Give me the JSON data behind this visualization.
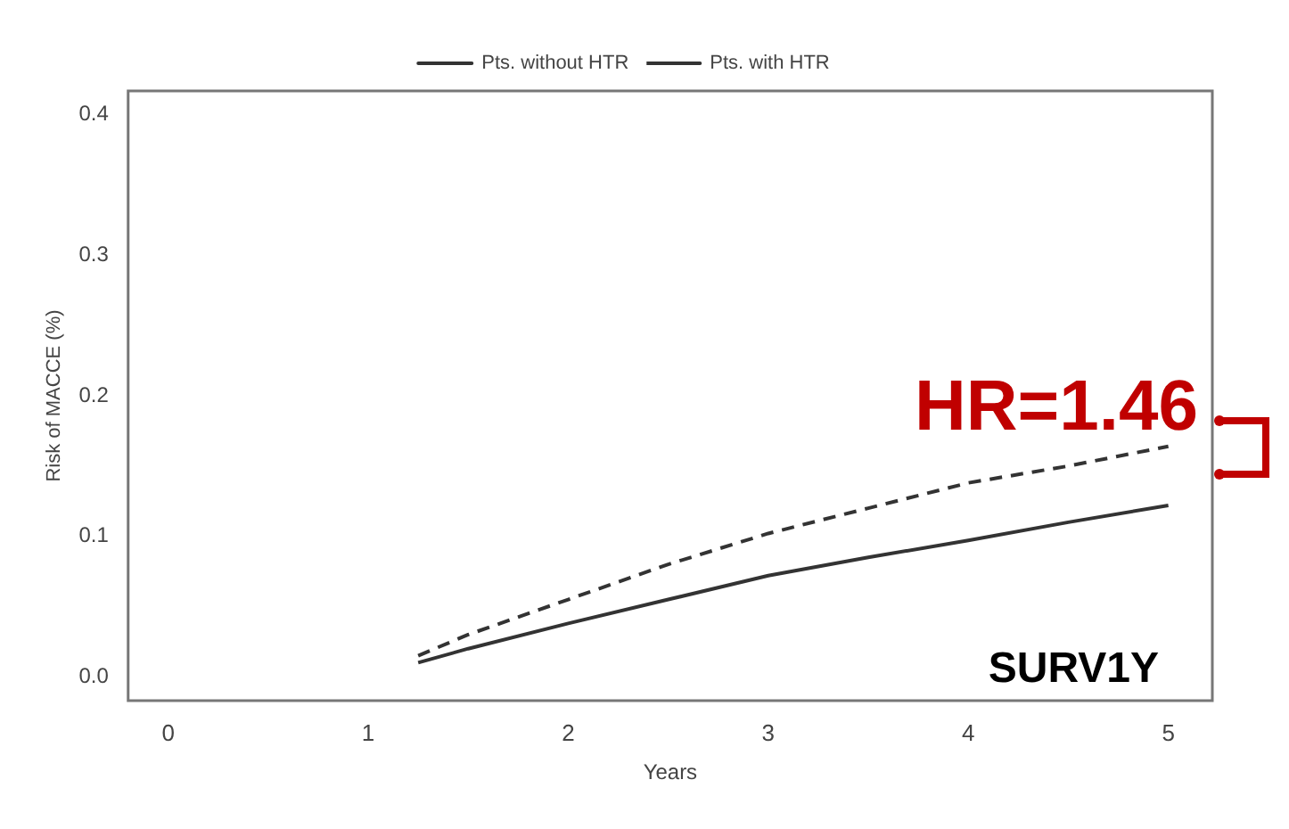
{
  "chart_data": {
    "type": "line",
    "xlabel": "Years",
    "ylabel": "Risk of MACCE (%)",
    "annotations": [
      "HR=1.46",
      "SURV1Y"
    ],
    "xlim": [
      -0.2,
      5.22
    ],
    "xticks": [
      0,
      1,
      2,
      3,
      4,
      5
    ],
    "ylim": [
      -0.017,
      0.417
    ],
    "yticks": [
      {
        "value": 0,
        "label": "0.0"
      },
      {
        "value": 0.1,
        "label": "0.1"
      },
      {
        "value": 0.2,
        "label": "0.2"
      },
      {
        "value": 0.3,
        "label": "0.3"
      },
      {
        "value": 0.4,
        "label": "0.4"
      }
    ],
    "grid": false,
    "legend": "top",
    "marker": "none",
    "series": [
      {
        "name": "Pts. without HTR",
        "color": "#333333",
        "line_style": "solid",
        "x": [
          1.25,
          1.5,
          2,
          2.5,
          3,
          3.5,
          4,
          4.5,
          5
        ],
        "values": [
          0.01,
          0.02,
          0.038,
          0.055,
          0.072,
          0.085,
          0.097,
          0.11,
          0.122
        ]
      },
      {
        "name": "Pts. with HTR",
        "color": "#333333",
        "line_style": "dashed",
        "x": [
          1.25,
          1.5,
          2,
          2.5,
          3,
          3.5,
          4,
          4.5,
          5
        ],
        "values": [
          0.015,
          0.03,
          0.055,
          0.08,
          0.102,
          0.12,
          0.138,
          0.15,
          0.164
        ]
      }
    ]
  }
}
